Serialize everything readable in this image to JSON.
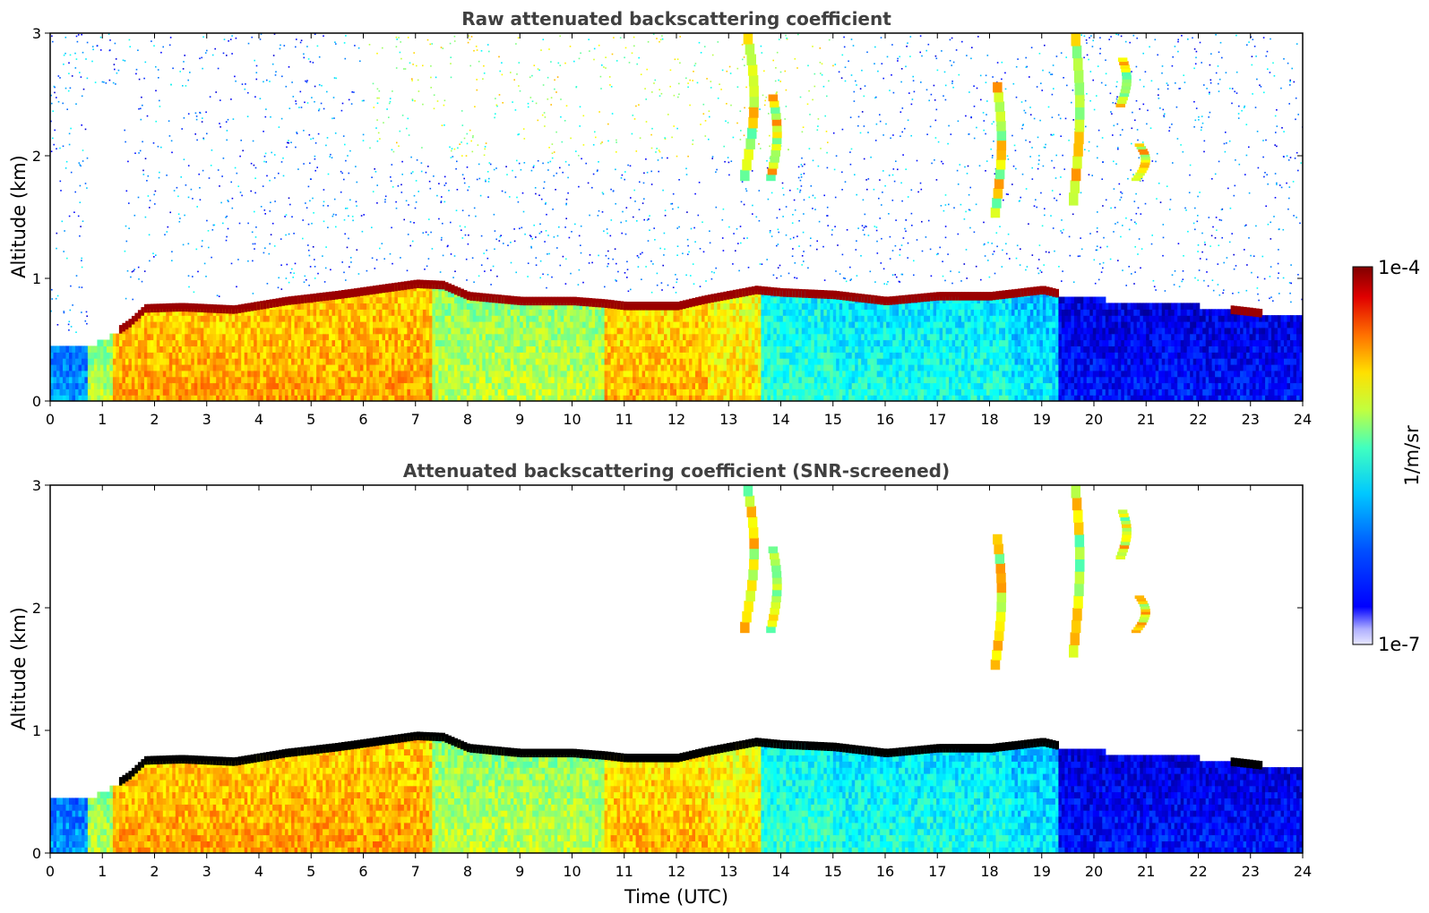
{
  "chart_data": [
    {
      "type": "heatmap",
      "title": "Raw attenuated backscattering coefficient",
      "xlabel": "",
      "ylabel": "Altitude (km)",
      "xlim": [
        0,
        24
      ],
      "ylim": [
        0,
        3
      ],
      "x_ticks": [
        0,
        1,
        2,
        3,
        4,
        5,
        6,
        7,
        8,
        9,
        10,
        11,
        12,
        13,
        14,
        15,
        16,
        17,
        18,
        19,
        20,
        21,
        22,
        23,
        24
      ],
      "y_ticks": [
        0,
        1,
        2,
        3
      ],
      "screened": false,
      "features": {
        "boundary_layer_top_km": [
          [
            0.7,
            0.48
          ],
          [
            1.0,
            0.52
          ],
          [
            1.5,
            0.66
          ],
          [
            1.8,
            0.78
          ],
          [
            2.5,
            0.79
          ],
          [
            3.5,
            0.77
          ],
          [
            4.5,
            0.84
          ],
          [
            5.5,
            0.89
          ],
          [
            6.5,
            0.95
          ],
          [
            7.0,
            0.98
          ],
          [
            7.5,
            0.97
          ],
          [
            8.0,
            0.88
          ],
          [
            9.0,
            0.84
          ],
          [
            10.0,
            0.84
          ],
          [
            10.6,
            0.82
          ],
          [
            11.0,
            0.8
          ],
          [
            12.0,
            0.8
          ],
          [
            12.5,
            0.85
          ],
          [
            13.5,
            0.93
          ],
          [
            14.0,
            0.91
          ],
          [
            15.0,
            0.89
          ],
          [
            16.0,
            0.84
          ],
          [
            17.0,
            0.88
          ],
          [
            18.0,
            0.88
          ],
          [
            19.0,
            0.93
          ],
          [
            19.3,
            0.9
          ],
          [
            20.0,
            0.86
          ],
          [
            21.0,
            0.81
          ],
          [
            22.0,
            0.8
          ],
          [
            23.0,
            0.75
          ],
          [
            24.0,
            0.7
          ]
        ],
        "cirrus": [
          {
            "t0": 13.0,
            "t1": 13.6,
            "z0": 1.8,
            "z1": 3.0
          },
          {
            "t0": 13.6,
            "t1": 14.0,
            "z0": 1.8,
            "z1": 2.5
          },
          {
            "t0": 17.9,
            "t1": 18.3,
            "z0": 1.5,
            "z1": 2.6
          },
          {
            "t0": 19.4,
            "t1": 19.8,
            "z0": 1.6,
            "z1": 3.0
          },
          {
            "t0": 20.3,
            "t1": 20.7,
            "z0": 2.4,
            "z1": 2.8
          },
          {
            "t0": 20.5,
            "t1": 21.1,
            "z0": 1.8,
            "z1": 2.1
          }
        ]
      }
    },
    {
      "type": "heatmap",
      "title": "Attenuated backscattering coefficient (SNR-screened)",
      "xlabel": "Time (UTC)",
      "ylabel": "Altitude (km)",
      "xlim": [
        0,
        24
      ],
      "ylim": [
        0,
        3
      ],
      "x_ticks": [
        0,
        1,
        2,
        3,
        4,
        5,
        6,
        7,
        8,
        9,
        10,
        11,
        12,
        13,
        14,
        15,
        16,
        17,
        18,
        19,
        20,
        21,
        22,
        23,
        24
      ],
      "y_ticks": [
        0,
        1,
        2,
        3
      ],
      "screened": true
    }
  ],
  "colorbar": {
    "label": "1/m/sr",
    "max_label": "1e-4",
    "min_label": "1e-7",
    "colormap": "jet",
    "scale": "log"
  },
  "colors": {
    "axis": "#000000",
    "title": "#404040",
    "low": "#0000e0",
    "mid": "#00e0ff",
    "high": "#ffe000",
    "max": "#800000",
    "saturated_screened": "#000000"
  }
}
